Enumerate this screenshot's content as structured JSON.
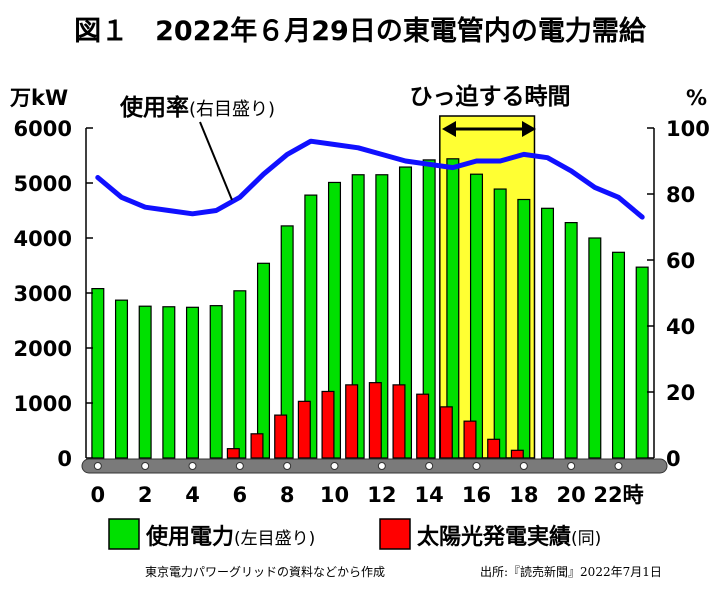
{
  "chart_data": {
    "type": "bar",
    "title": "図１　2022年６月29日の東電管内の電力需給",
    "x": [
      0,
      1,
      2,
      3,
      4,
      5,
      6,
      7,
      8,
      9,
      10,
      11,
      12,
      13,
      14,
      15,
      16,
      17,
      18,
      19,
      20,
      21,
      22,
      23
    ],
    "xticks": [
      0,
      2,
      4,
      6,
      8,
      10,
      12,
      14,
      16,
      18,
      20,
      22
    ],
    "xtick_suffix_last": "時",
    "ylim_left": [
      0,
      6000
    ],
    "ylim_right": [
      0,
      100
    ],
    "yticks_left": [
      0,
      1000,
      2000,
      3000,
      4000,
      5000,
      6000
    ],
    "yticks_right": [
      0,
      20,
      40,
      60,
      80,
      100
    ],
    "ylabel_left": "万kW",
    "ylabel_right": "%",
    "series": [
      {
        "name": "使用電力",
        "name_note": "(左目盛り)",
        "type": "bar",
        "axis": "left",
        "color": "#00e000",
        "values": [
          3080,
          2870,
          2760,
          2750,
          2740,
          2770,
          3040,
          3540,
          4220,
          4780,
          5010,
          5150,
          5150,
          5290,
          5420,
          5440,
          5160,
          4890,
          4700,
          4540,
          4280,
          4000,
          3740,
          3470
        ]
      },
      {
        "name": "太陽光発電実績",
        "name_note": "(同)",
        "type": "bar",
        "axis": "left",
        "color": "#ff0000",
        "values": [
          0,
          0,
          0,
          0,
          0,
          0,
          170,
          440,
          780,
          1030,
          1210,
          1330,
          1370,
          1330,
          1160,
          930,
          670,
          340,
          140,
          0,
          0,
          0,
          0,
          0
        ]
      },
      {
        "name": "使用率",
        "name_note": "(右目盛り)",
        "type": "line",
        "axis": "right",
        "color": "#1010ff",
        "values": [
          85,
          79,
          76,
          75,
          74,
          75,
          79,
          86,
          92,
          96,
          95,
          94,
          92,
          90,
          89,
          88,
          90,
          90,
          92,
          91,
          87,
          82,
          79,
          73
        ]
      }
    ],
    "highlight": {
      "label": "ひっ迫する時間",
      "from": 15,
      "to": 18,
      "color": "#ffff33"
    },
    "source_left": "東京電力パワーグリッドの資料などから作成",
    "source_right": "出所:『読売新聞』2022年7月1日"
  }
}
